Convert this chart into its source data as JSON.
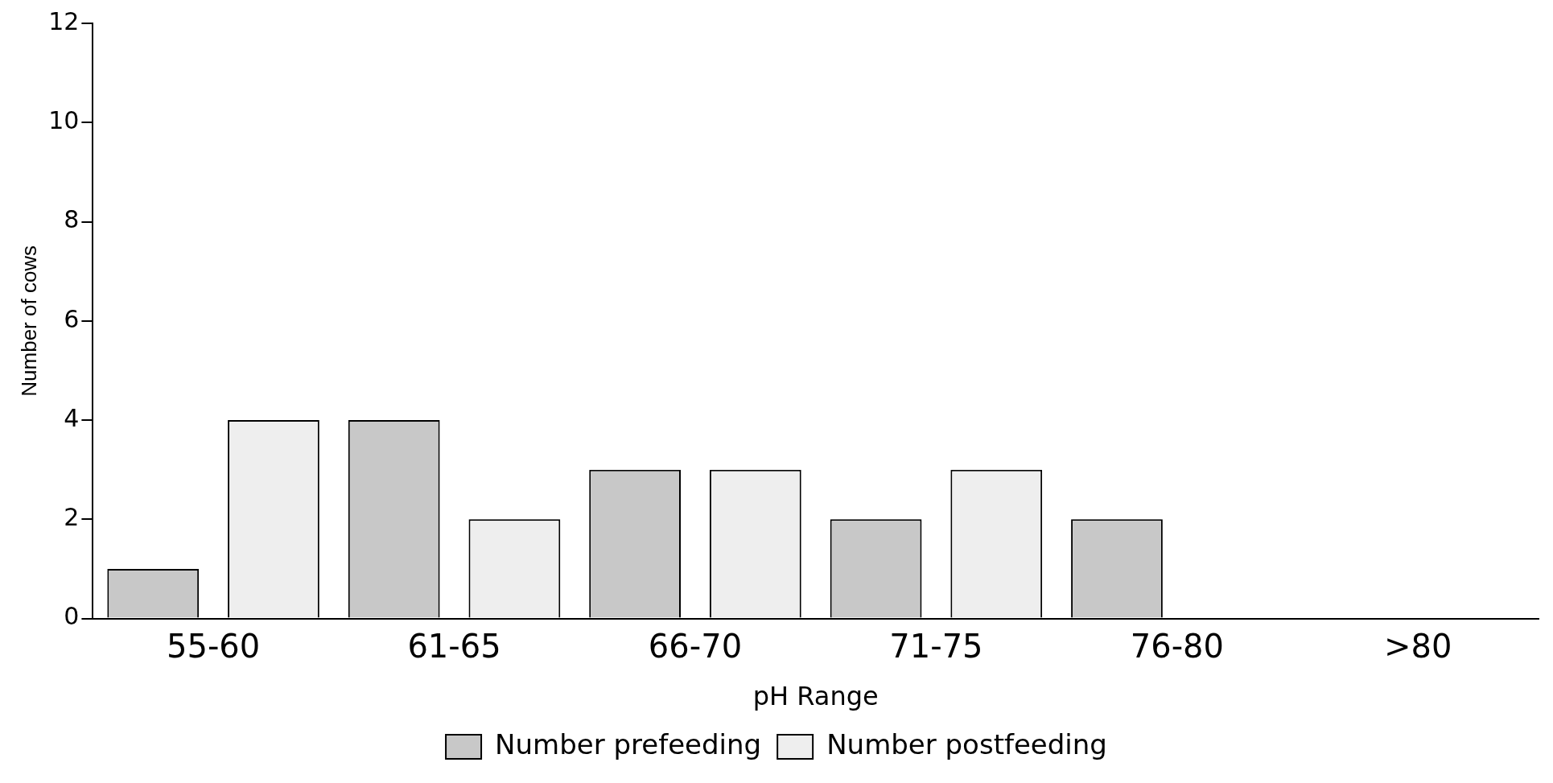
{
  "chart_data": {
    "type": "bar",
    "xlabel": "pH Range",
    "ylabel": "Number of cows",
    "categories": [
      "55-60",
      "61-65",
      "66-70",
      "71-75",
      "76-80",
      ">80"
    ],
    "series": [
      {
        "name": "Number prefeeding",
        "color": "#c8c8c8",
        "values": [
          1,
          4,
          3,
          2,
          2,
          0
        ]
      },
      {
        "name": "Number postfeeding",
        "color": "#eeeeee",
        "values": [
          4,
          2,
          3,
          3,
          0,
          0
        ]
      }
    ],
    "ylim": [
      0,
      12
    ],
    "yticks": [
      0,
      2,
      4,
      6,
      8,
      10,
      12
    ],
    "grid": false,
    "legend": "bottom"
  }
}
